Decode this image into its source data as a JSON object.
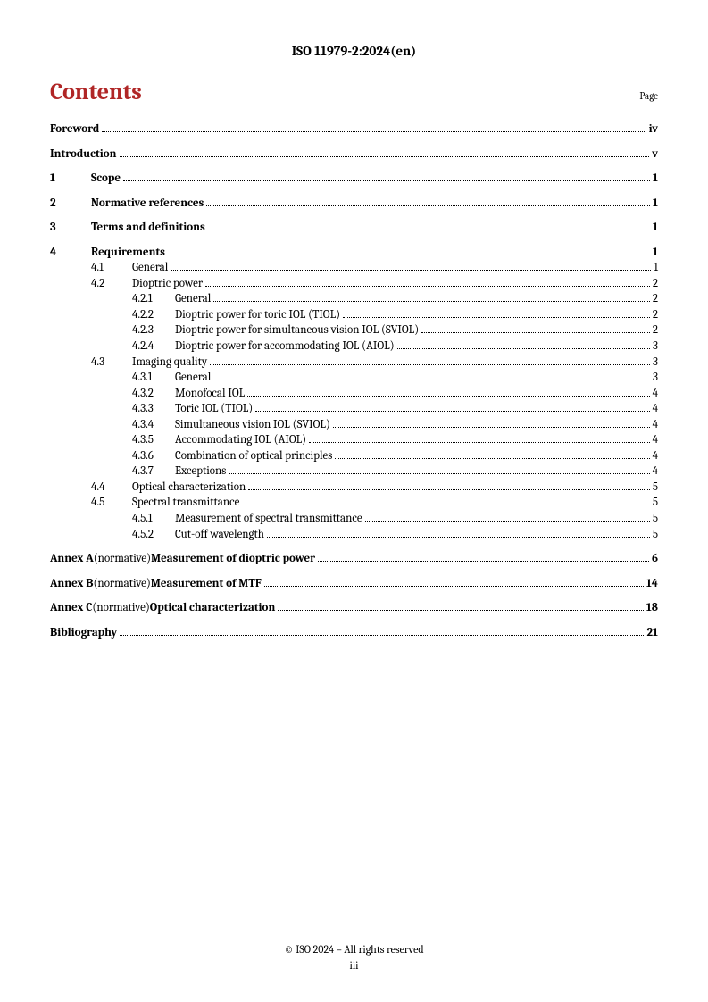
{
  "header": "ISO 11979-2:2024(en)",
  "contentsTitle": "Contents",
  "pageLabel": "Page",
  "toc": {
    "foreword": {
      "text": "Foreword",
      "page": "iv"
    },
    "introduction": {
      "text": "Introduction",
      "page": "v"
    },
    "s1": {
      "num": "1",
      "text": "Scope",
      "page": "1"
    },
    "s2": {
      "num": "2",
      "text": "Normative references",
      "page": "1"
    },
    "s3": {
      "num": "3",
      "text": "Terms and definitions",
      "page": "1"
    },
    "s4": {
      "num": "4",
      "text": "Requirements",
      "page": "1"
    },
    "s4_1": {
      "num": "4.1",
      "text": "General",
      "page": "1"
    },
    "s4_2": {
      "num": "4.2",
      "text": "Dioptric power",
      "page": "2"
    },
    "s4_2_1": {
      "num": "4.2.1",
      "text": "General",
      "page": "2"
    },
    "s4_2_2": {
      "num": "4.2.2",
      "text": "Dioptric power for toric IOL (TIOL)",
      "page": "2"
    },
    "s4_2_3": {
      "num": "4.2.3",
      "text": "Dioptric power for simultaneous vision IOL (SVIOL)",
      "page": "2"
    },
    "s4_2_4": {
      "num": "4.2.4",
      "text": "Dioptric power for accommodating IOL (AIOL)",
      "page": "3"
    },
    "s4_3": {
      "num": "4.3",
      "text": "Imaging quality",
      "page": "3"
    },
    "s4_3_1": {
      "num": "4.3.1",
      "text": "General",
      "page": "3"
    },
    "s4_3_2": {
      "num": "4.3.2",
      "text": "Monofocal IOL",
      "page": "4"
    },
    "s4_3_3": {
      "num": "4.3.3",
      "text": "Toric IOL (TIOL)",
      "page": "4"
    },
    "s4_3_4": {
      "num": "4.3.4",
      "text": "Simultaneous vision IOL (SVIOL)",
      "page": "4"
    },
    "s4_3_5": {
      "num": "4.3.5",
      "text": "Accommodating IOL (AIOL)",
      "page": "4"
    },
    "s4_3_6": {
      "num": "4.3.6",
      "text": "Combination of optical principles",
      "page": "4"
    },
    "s4_3_7": {
      "num": "4.3.7",
      "text": "Exceptions",
      "page": "4"
    },
    "s4_4": {
      "num": "4.4",
      "text": "Optical characterization",
      "page": "5"
    },
    "s4_5": {
      "num": "4.5",
      "text": "Spectral transmittance",
      "page": "5"
    },
    "s4_5_1": {
      "num": "4.5.1",
      "text": "Measurement of spectral transmittance",
      "page": "5"
    },
    "s4_5_2": {
      "num": "4.5.2",
      "text": "Cut-off wavelength",
      "page": "5"
    },
    "annexA": {
      "prefix": "Annex A",
      "normative": " (normative) ",
      "title": "Measurement of dioptric power",
      "page": "6"
    },
    "annexB": {
      "prefix": "Annex B",
      "normative": " (normative) ",
      "title": "Measurement of MTF",
      "page": "14"
    },
    "annexC": {
      "prefix": "Annex C",
      "normative": " (normative) ",
      "title": "Optical characterization",
      "page": "18"
    },
    "bibliography": {
      "text": "Bibliography",
      "page": "21"
    }
  },
  "footer": {
    "copyright": "© ISO 2024 – All rights reserved",
    "pageNum": "iii"
  }
}
